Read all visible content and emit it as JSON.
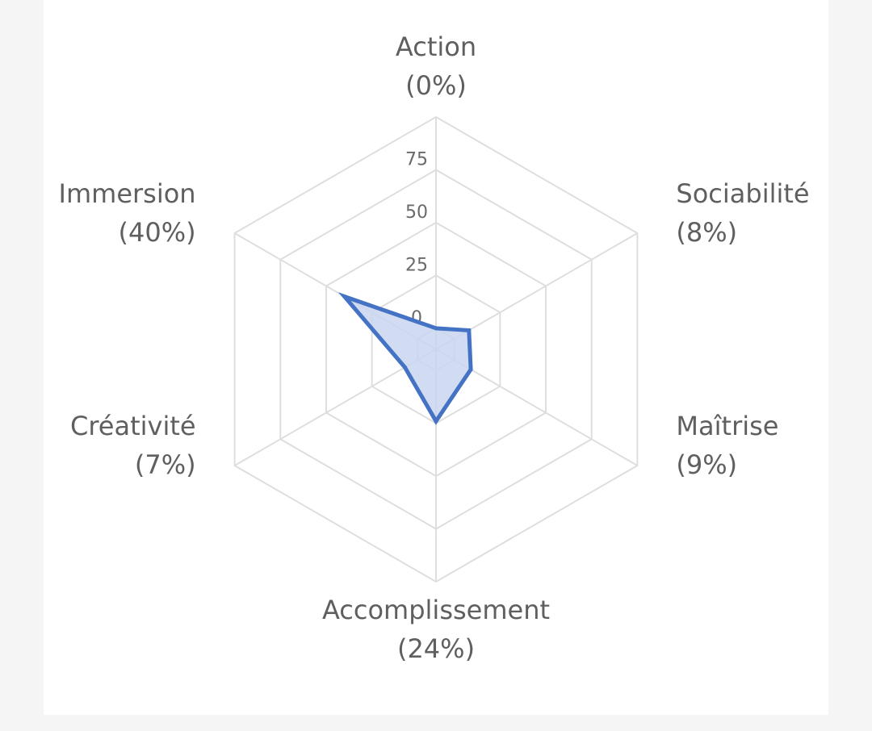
{
  "chart_data": {
    "type": "radar",
    "categories": [
      "Action",
      "Sociabilité",
      "Maîtrise",
      "Accomplissement",
      "Créativité",
      "Immersion"
    ],
    "category_percent_labels": [
      "(0%)",
      "(8%)",
      "(9%)",
      "(24%)",
      "(7%)",
      "(40%)"
    ],
    "series": [
      {
        "values": [
          0,
          8,
          9,
          24,
          7,
          40
        ],
        "color": "#4472c4",
        "fill": "#c9d6f0"
      }
    ],
    "radial_ticks": [
      "0",
      "25",
      "50",
      "75"
    ],
    "rlim": [
      -10,
      100
    ],
    "grid": true,
    "grid_color": "#dedede",
    "legend": "none"
  }
}
